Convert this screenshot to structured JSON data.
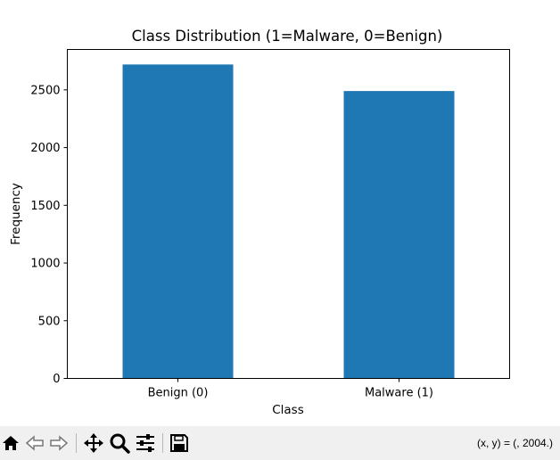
{
  "chart_data": {
    "type": "bar",
    "title": "Class Distribution (1=Malware, 0=Benign)",
    "xlabel": "Class",
    "ylabel": "Frequency",
    "categories": [
      "Benign (0)",
      "Malware (1)"
    ],
    "values": [
      2720,
      2490
    ],
    "ylim": [
      0,
      2850
    ],
    "yticks": [
      0,
      500,
      1000,
      1500,
      2000,
      2500
    ],
    "bar_color": "#1f77b4",
    "grid": false
  },
  "toolbar": {
    "buttons": [
      {
        "name": "home-button",
        "icon": "home-icon"
      },
      {
        "name": "back-button",
        "icon": "back-arrow-icon"
      },
      {
        "name": "forward-button",
        "icon": "forward-arrow-icon"
      },
      {
        "name": "pan-button",
        "icon": "move-icon"
      },
      {
        "name": "zoom-button",
        "icon": "magnifier-icon"
      },
      {
        "name": "configure-button",
        "icon": "sliders-icon"
      },
      {
        "name": "save-button",
        "icon": "floppy-disk-icon"
      }
    ],
    "coords": "(x, y) = (, 2004.)"
  }
}
